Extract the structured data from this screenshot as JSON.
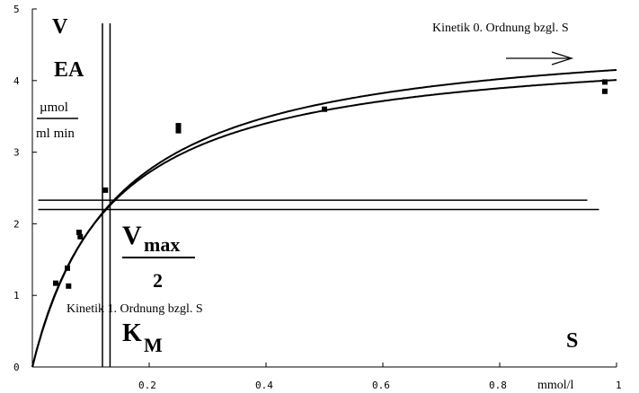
{
  "chart_data": {
    "type": "scatter",
    "xlim": [
      0,
      1
    ],
    "ylim": [
      0,
      5
    ],
    "x_ticks": [
      "0.2",
      "0.4",
      "0.6",
      "0.8",
      "1"
    ],
    "y_ticks": [
      "0",
      "1",
      "2",
      "3",
      "4",
      "5"
    ],
    "grid": false,
    "legend": "none",
    "labels": {
      "y_var": "V",
      "y_var2": "EA",
      "y_unit_num": "µmol",
      "y_unit_den": "ml min",
      "x_var": "S",
      "x_unit": "mmol/l",
      "vmax_v": "V",
      "vmax_sub": "max",
      "vmax_den": "2",
      "km_k": "K",
      "km_sub": "M",
      "zero_order": "Kinetik 0. Ordnung bzgl. S",
      "first_order": "Kinetik 1. Ordnung bzgl. S"
    },
    "points": [
      {
        "x": 0.04,
        "y": 1.17
      },
      {
        "x": 0.06,
        "y": 1.38
      },
      {
        "x": 0.062,
        "y": 1.13
      },
      {
        "x": 0.08,
        "y": 1.88
      },
      {
        "x": 0.082,
        "y": 1.82
      },
      {
        "x": 0.125,
        "y": 2.47
      },
      {
        "x": 0.25,
        "y": 3.37
      },
      {
        "x": 0.25,
        "y": 3.3
      },
      {
        "x": 0.5,
        "y": 3.6
      },
      {
        "x": 0.98,
        "y": 3.98
      },
      {
        "x": 0.98,
        "y": 3.85
      }
    ],
    "fit_curves": [
      {
        "vmax": 4.75,
        "km": 0.145
      },
      {
        "vmax": 4.55,
        "km": 0.135
      }
    ],
    "reference_lines": {
      "vmax_half_y": [
        2.33,
        2.2
      ],
      "km_x": [
        0.12,
        0.133
      ]
    }
  }
}
